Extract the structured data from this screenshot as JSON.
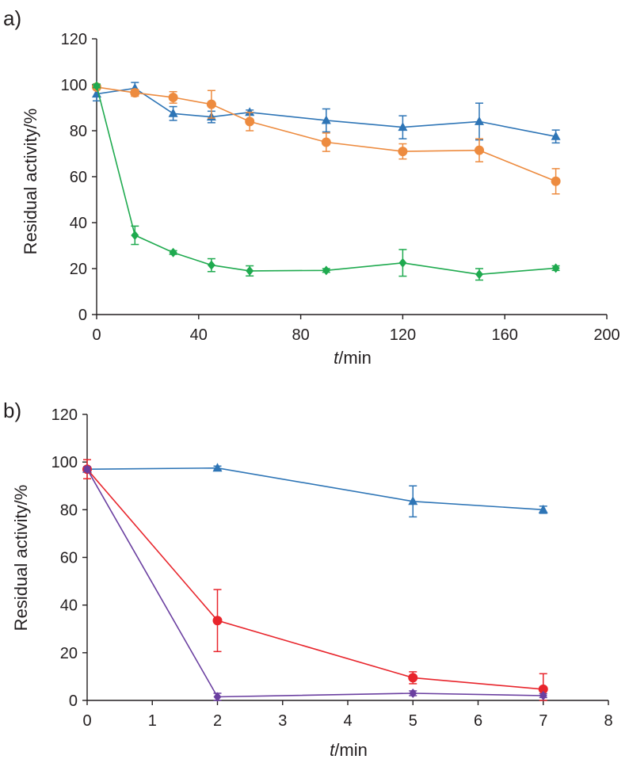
{
  "chart_data": [
    {
      "type": "line",
      "panel_label": "a)",
      "xlabel_italic": "t",
      "xlabel_rest": "/min",
      "ylabel": "Residual activity/%",
      "xlim": [
        0,
        200
      ],
      "ylim": [
        0,
        120
      ],
      "xticks": [
        0,
        40,
        80,
        120,
        160,
        200
      ],
      "yticks": [
        0,
        20,
        40,
        60,
        80,
        100,
        120
      ],
      "grid": false,
      "series": [
        {
          "name": "blue-triangles",
          "color": "#2e75b6",
          "marker": "triangle",
          "x": [
            0,
            15,
            30,
            45,
            60,
            90,
            120,
            150,
            180
          ],
          "y": [
            96,
            98.5,
            87.5,
            86,
            88,
            84.5,
            81.5,
            84,
            77.5
          ],
          "err": [
            3,
            2.5,
            3,
            2.5,
            1,
            5,
            5,
            8,
            2.8
          ]
        },
        {
          "name": "orange-circles",
          "color": "#ed8b3f",
          "marker": "circle",
          "x": [
            0,
            15,
            30,
            45,
            60,
            90,
            120,
            150,
            180
          ],
          "y": [
            99,
            96.5,
            94.5,
            91.5,
            84,
            75,
            71,
            71.5,
            58
          ],
          "err": [
            1,
            1.5,
            2.5,
            6,
            4,
            4,
            3.3,
            5,
            5.5
          ]
        },
        {
          "name": "green-diamonds",
          "color": "#1faa4f",
          "marker": "diamond",
          "x": [
            0,
            15,
            30,
            45,
            60,
            90,
            120,
            150,
            180
          ],
          "y": [
            99.5,
            34.5,
            27,
            21.5,
            19,
            19.2,
            22.5,
            17.5,
            20.2
          ],
          "err": [
            0.8,
            4,
            0.8,
            2.8,
            2.2,
            0.8,
            5.8,
            2.5,
            1
          ]
        }
      ]
    },
    {
      "type": "line",
      "panel_label": "b)",
      "xlabel_italic": "t",
      "xlabel_rest": "/min",
      "ylabel": "Residual activity/%",
      "xlim": [
        0,
        8
      ],
      "ylim": [
        0,
        120
      ],
      "xticks": [
        0,
        1,
        2,
        3,
        4,
        5,
        6,
        7,
        8
      ],
      "yticks": [
        0,
        20,
        40,
        60,
        80,
        100,
        120
      ],
      "grid": false,
      "series": [
        {
          "name": "blue-triangles",
          "color": "#2e75b6",
          "marker": "triangle",
          "x": [
            0,
            2,
            5,
            7
          ],
          "y": [
            97,
            97.5,
            83.5,
            80
          ],
          "err": [
            1,
            0.8,
            6.5,
            1.5
          ]
        },
        {
          "name": "red-circles",
          "color": "#e8252c",
          "marker": "circle",
          "x": [
            0,
            2,
            5,
            7
          ],
          "y": [
            97,
            33.5,
            9.5,
            4.7
          ],
          "err": [
            4,
            13,
            2.5,
            6.5
          ]
        },
        {
          "name": "purple-diamonds",
          "color": "#6a3fa0",
          "marker": "diamond",
          "x": [
            0,
            2,
            5,
            7
          ],
          "y": [
            97,
            1.5,
            3,
            2
          ],
          "err": [
            1,
            1.5,
            1,
            0.8
          ]
        }
      ]
    }
  ]
}
